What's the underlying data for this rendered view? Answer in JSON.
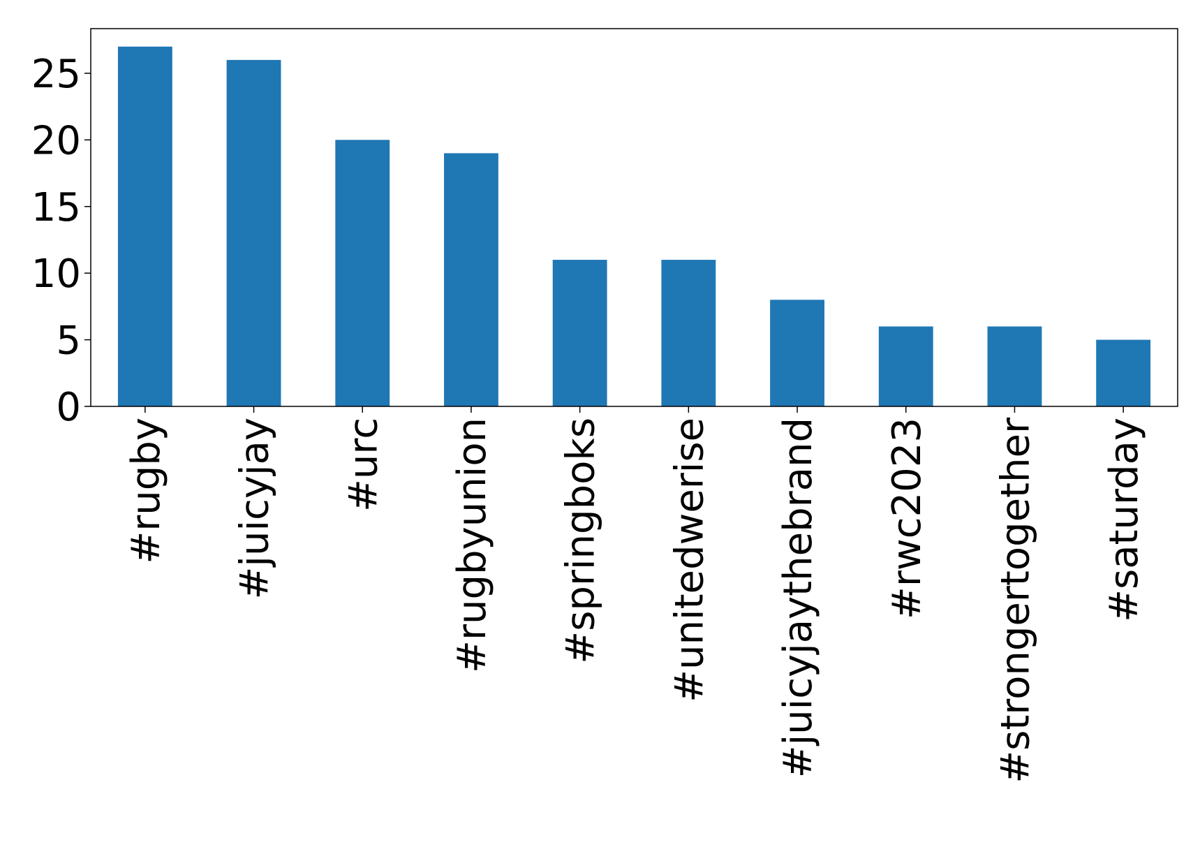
{
  "chart_data": {
    "type": "bar",
    "categories": [
      "#rugby",
      "#juicyjay",
      "#urc",
      "#rugbyunion",
      "#springboks",
      "#unitedwerise",
      "#juicyjaythebrand",
      "#rwc2023",
      "#strongertogether",
      "#saturday"
    ],
    "values": [
      27,
      26,
      20,
      19,
      11,
      11,
      8,
      6,
      6,
      5
    ],
    "color": "#1f77b4",
    "ylim": [
      0,
      28.35
    ],
    "yticks": [
      0,
      5,
      10,
      15,
      20,
      25
    ],
    "grid": false
  }
}
